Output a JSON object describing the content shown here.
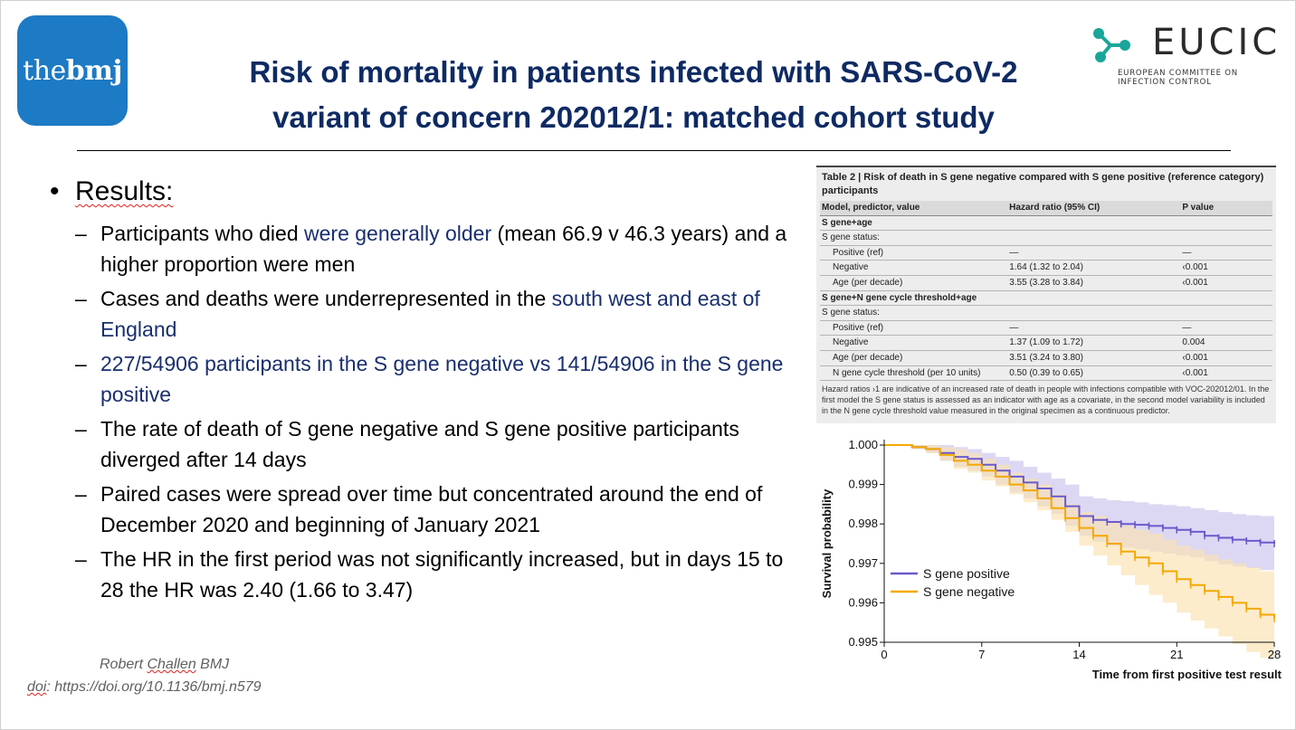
{
  "logos": {
    "bmj": {
      "prefix": "the",
      "bold": "bmj"
    },
    "eucic": {
      "name": "EUCIC",
      "line1": "EUROPEAN COMMITTEE ON",
      "line2": "INFECTION CONTROL"
    }
  },
  "title": {
    "line1": "Risk of mortality in patients infected with SARS-CoV-2",
    "line2": "variant of concern 202012/1: matched cohort study"
  },
  "bullets": {
    "heading": "Results:",
    "items": [
      {
        "pre": " Participants who died ",
        "hl": "were generally older",
        "post": " (mean 66.9 v 46.3 years) and a higher proportion were men"
      },
      {
        "pre": "Cases and deaths were underrepresented in the ",
        "hl": "south west and east of England",
        "post": ""
      },
      {
        "pre": "",
        "hl": "227/54906 participants in the S gene negative vs 141/54906 in the S gene positive",
        "post": ""
      },
      {
        "pre": "The rate of death of S gene negative and S gene positive participants diverged after 14 days",
        "hl": "",
        "post": ""
      },
      {
        "pre": "Paired cases were spread over time but concentrated around the end of December 2020 and beginning of January 2021",
        "hl": "",
        "post": ""
      },
      {
        "pre": "The HR in the first period was not significantly increased, but in days 15 to 28 the HR was 2.40 (1.66 to 3.47)",
        "hl": "",
        "post": ""
      }
    ]
  },
  "citation": {
    "author_first": "Robert ",
    "author_last": "Challen",
    "author_suffix": " BMJ",
    "doi_label": "doi",
    "doi_rest": ": https://doi.org/10.1136/bmj.n579"
  },
  "table": {
    "caption": "Table 2 | Risk of death in S gene negative compared with S gene positive (reference category) participants",
    "headers": [
      "Model, predictor, value",
      "Hazard ratio (95% CI)",
      "P value"
    ],
    "rows": [
      {
        "type": "section",
        "cells": [
          "S gene+age",
          "",
          ""
        ]
      },
      {
        "type": "plain",
        "cells": [
          "S gene status:",
          "",
          ""
        ]
      },
      {
        "type": "indent",
        "cells": [
          "Positive (ref)",
          "—",
          "—"
        ]
      },
      {
        "type": "indent",
        "cells": [
          "Negative",
          "1.64 (1.32 to 2.04)",
          "‹0.001"
        ]
      },
      {
        "type": "indent",
        "cells": [
          "Age (per decade)",
          "3.55 (3.28 to 3.84)",
          "‹0.001"
        ]
      },
      {
        "type": "section",
        "cells": [
          "S gene+N gene cycle threshold+age",
          "",
          ""
        ]
      },
      {
        "type": "plain",
        "cells": [
          "S gene status:",
          "",
          ""
        ]
      },
      {
        "type": "indent",
        "cells": [
          "Positive (ref)",
          "—",
          "—"
        ]
      },
      {
        "type": "indent",
        "cells": [
          "Negative",
          "1.37 (1.09 to 1.72)",
          "0.004"
        ]
      },
      {
        "type": "indent",
        "cells": [
          "Age (per decade)",
          "3.51 (3.24 to 3.80)",
          "‹0.001"
        ]
      },
      {
        "type": "indent",
        "cells": [
          "N gene cycle threshold (per 10 units)",
          "0.50 (0.39 to 0.65)",
          "‹0.001"
        ]
      }
    ],
    "footnote": "Hazard ratios ›1 are indicative of an increased rate of death in people with infections compatible with VOC-202012/01. In the first model the S gene status is assessed as an indicator with age as a covariate, in the second model variability is included in the N gene cycle threshold value measured in the original specimen as a continuous predictor."
  },
  "chart_data": {
    "type": "line",
    "xlabel": "Time from first positive test result",
    "ylabel": "Survival probability",
    "xlim": [
      0,
      28
    ],
    "ylim": [
      0.995,
      1.0
    ],
    "x_ticks": [
      0,
      7,
      14,
      21,
      28
    ],
    "y_ticks": [
      "0.995",
      "0.996",
      "0.997",
      "0.998",
      "0.999",
      "1.000"
    ],
    "legend_position": "bottom-left",
    "series": [
      {
        "name": "S gene positive",
        "color": "#6a5acd",
        "band_color": "#c9c3ec",
        "x": [
          0,
          1,
          2,
          3,
          4,
          5,
          6,
          7,
          8,
          9,
          10,
          11,
          12,
          13,
          14,
          15,
          16,
          17,
          18,
          19,
          20,
          21,
          22,
          23,
          24,
          25,
          26,
          27,
          28
        ],
        "y": [
          1.0,
          1.0,
          0.99995,
          0.9999,
          0.9998,
          0.9997,
          0.99965,
          0.9995,
          0.99935,
          0.9992,
          0.99905,
          0.9989,
          0.9987,
          0.99845,
          0.9982,
          0.9981,
          0.99805,
          0.998,
          0.99798,
          0.99795,
          0.9979,
          0.99785,
          0.9978,
          0.9977,
          0.99765,
          0.9976,
          0.99757,
          0.99753,
          0.9975
        ],
        "lower": [
          1.0,
          1.0,
          0.9999,
          0.9998,
          0.9996,
          0.99945,
          0.99935,
          0.9992,
          0.999,
          0.9988,
          0.99865,
          0.99845,
          0.99825,
          0.99795,
          0.9977,
          0.99755,
          0.99745,
          0.9974,
          0.99735,
          0.9973,
          0.99725,
          0.9972,
          0.99715,
          0.99705,
          0.99698,
          0.99692,
          0.99688,
          0.99683,
          0.9968
        ],
        "upper": [
          1.0,
          1.0,
          1.0,
          1.0,
          1.0,
          0.99995,
          0.9999,
          0.9998,
          0.9997,
          0.9996,
          0.99945,
          0.9993,
          0.99915,
          0.999,
          0.9987,
          0.99865,
          0.9986,
          0.99858,
          0.99855,
          0.9985,
          0.99848,
          0.99845,
          0.9984,
          0.99835,
          0.9983,
          0.99825,
          0.99822,
          0.9982,
          0.99818
        ]
      },
      {
        "name": "S gene negative",
        "color": "#f5a800",
        "band_color": "#fbe2b0",
        "x": [
          0,
          1,
          2,
          3,
          4,
          5,
          6,
          7,
          8,
          9,
          10,
          11,
          12,
          13,
          14,
          15,
          16,
          17,
          18,
          19,
          20,
          21,
          22,
          23,
          24,
          25,
          26,
          27,
          28
        ],
        "y": [
          1.0,
          1.0,
          0.99995,
          0.9999,
          0.99975,
          0.9996,
          0.9995,
          0.99935,
          0.9992,
          0.999,
          0.99885,
          0.99865,
          0.9984,
          0.99815,
          0.9979,
          0.9977,
          0.9975,
          0.9973,
          0.99715,
          0.997,
          0.9968,
          0.9966,
          0.99645,
          0.9963,
          0.99615,
          0.996,
          0.99585,
          0.9957,
          0.9956
        ],
        "lower": [
          1.0,
          1.0,
          0.9999,
          0.9998,
          0.9996,
          0.9994,
          0.9993,
          0.9991,
          0.99895,
          0.99875,
          0.99855,
          0.99835,
          0.9981,
          0.9978,
          0.99745,
          0.9972,
          0.99695,
          0.9967,
          0.99645,
          0.9962,
          0.996,
          0.99575,
          0.99555,
          0.99535,
          0.99515,
          0.99495,
          0.99475,
          0.9946,
          0.99445
        ],
        "upper": [
          1.0,
          1.0,
          1.0,
          1.0,
          0.99995,
          0.9999,
          0.9998,
          0.99965,
          0.9995,
          0.9993,
          0.99915,
          0.999,
          0.99875,
          0.9985,
          0.9983,
          0.9982,
          0.99805,
          0.99795,
          0.99785,
          0.99775,
          0.9976,
          0.99745,
          0.99735,
          0.99722,
          0.9971,
          0.997,
          0.9969,
          0.9968,
          0.9967
        ]
      }
    ]
  }
}
